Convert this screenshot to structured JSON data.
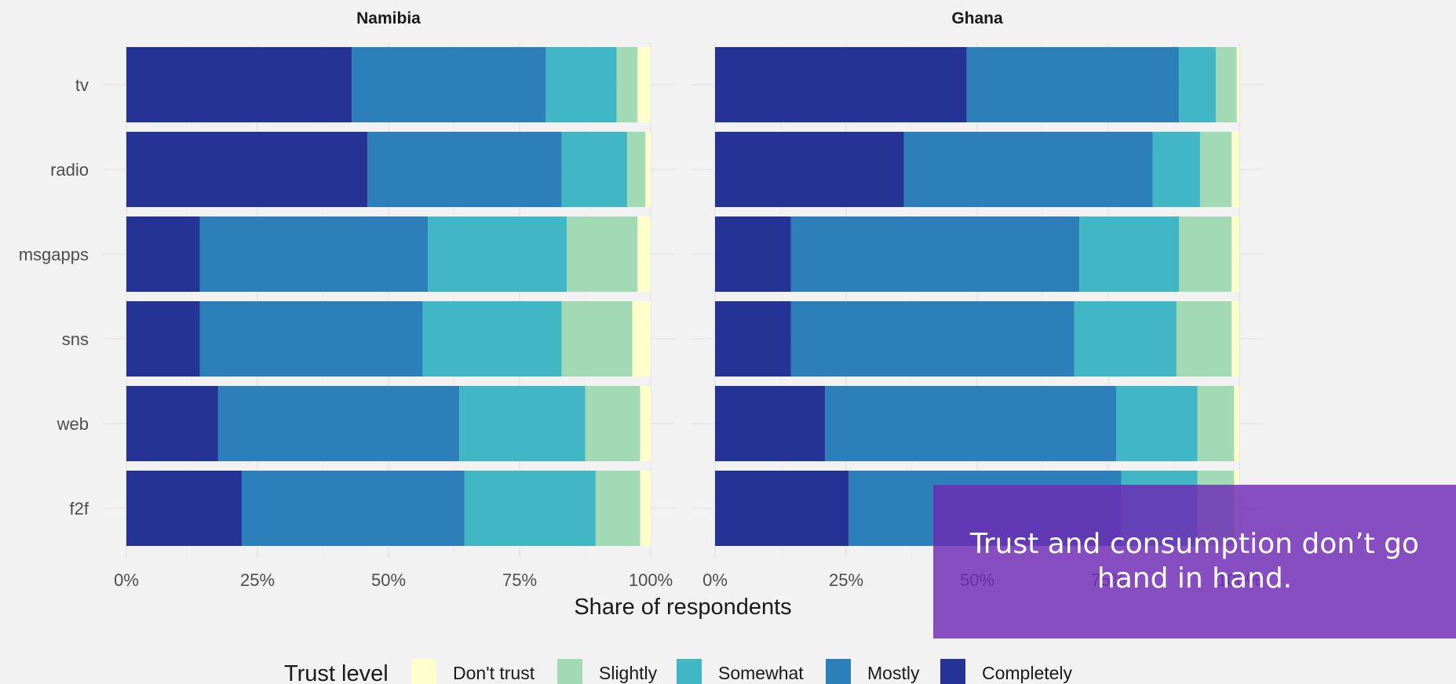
{
  "chart_data": {
    "type": "bar",
    "orientation": "horizontal",
    "stacked": true,
    "xlabel": "Share of respondents",
    "x_ticks": [
      "0%",
      "25%",
      "50%",
      "75%",
      "100%"
    ],
    "xlim": [
      0,
      1
    ],
    "categories": [
      "tv",
      "radio",
      "msgapps",
      "sns",
      "web",
      "f2f"
    ],
    "legend_title": "Trust level",
    "legend_position": "bottom",
    "grid": true,
    "levels": [
      {
        "name": "Don't trust",
        "color": "#ffffcc"
      },
      {
        "name": "Slightly",
        "color": "#a1dab4"
      },
      {
        "name": "Somewhat",
        "color": "#41b6c4"
      },
      {
        "name": "Mostly",
        "color": "#2c7fb8"
      },
      {
        "name": "Completely",
        "color": "#253494"
      }
    ],
    "panels": [
      {
        "title": "Namibia",
        "rows": [
          {
            "category": "tv",
            "Completely": 0.43,
            "Mostly": 0.37,
            "Somewhat": 0.135,
            "Slightly": 0.04,
            "Don't trust": 0.025
          },
          {
            "category": "radio",
            "Completely": 0.46,
            "Mostly": 0.37,
            "Somewhat": 0.125,
            "Slightly": 0.035,
            "Don't trust": 0.01
          },
          {
            "category": "msgapps",
            "Completely": 0.14,
            "Mostly": 0.435,
            "Somewhat": 0.265,
            "Slightly": 0.135,
            "Don't trust": 0.025
          },
          {
            "category": "sns",
            "Completely": 0.14,
            "Mostly": 0.425,
            "Somewhat": 0.265,
            "Slightly": 0.135,
            "Don't trust": 0.035
          },
          {
            "category": "web",
            "Completely": 0.175,
            "Mostly": 0.46,
            "Somewhat": 0.24,
            "Slightly": 0.105,
            "Don't trust": 0.02
          },
          {
            "category": "f2f",
            "Completely": 0.22,
            "Mostly": 0.425,
            "Somewhat": 0.25,
            "Slightly": 0.085,
            "Don't trust": 0.02
          }
        ]
      },
      {
        "title": "Ghana",
        "rows": [
          {
            "category": "tv",
            "Completely": 0.48,
            "Mostly": 0.405,
            "Somewhat": 0.07,
            "Slightly": 0.04,
            "Don't trust": 0.005
          },
          {
            "category": "radio",
            "Completely": 0.36,
            "Mostly": 0.475,
            "Somewhat": 0.09,
            "Slightly": 0.06,
            "Don't trust": 0.015
          },
          {
            "category": "msgapps",
            "Completely": 0.145,
            "Mostly": 0.55,
            "Somewhat": 0.19,
            "Slightly": 0.1,
            "Don't trust": 0.015
          },
          {
            "category": "sns",
            "Completely": 0.145,
            "Mostly": 0.54,
            "Somewhat": 0.195,
            "Slightly": 0.105,
            "Don't trust": 0.015
          },
          {
            "category": "web",
            "Completely": 0.21,
            "Mostly": 0.555,
            "Somewhat": 0.155,
            "Slightly": 0.07,
            "Don't trust": 0.01
          },
          {
            "category": "f2f",
            "Completely": 0.255,
            "Mostly": 0.52,
            "Somewhat": 0.145,
            "Slightly": 0.07,
            "Don't trust": 0.01
          }
        ]
      }
    ]
  },
  "caption": {
    "text": "Trust and consumption don’t go hand in hand."
  }
}
